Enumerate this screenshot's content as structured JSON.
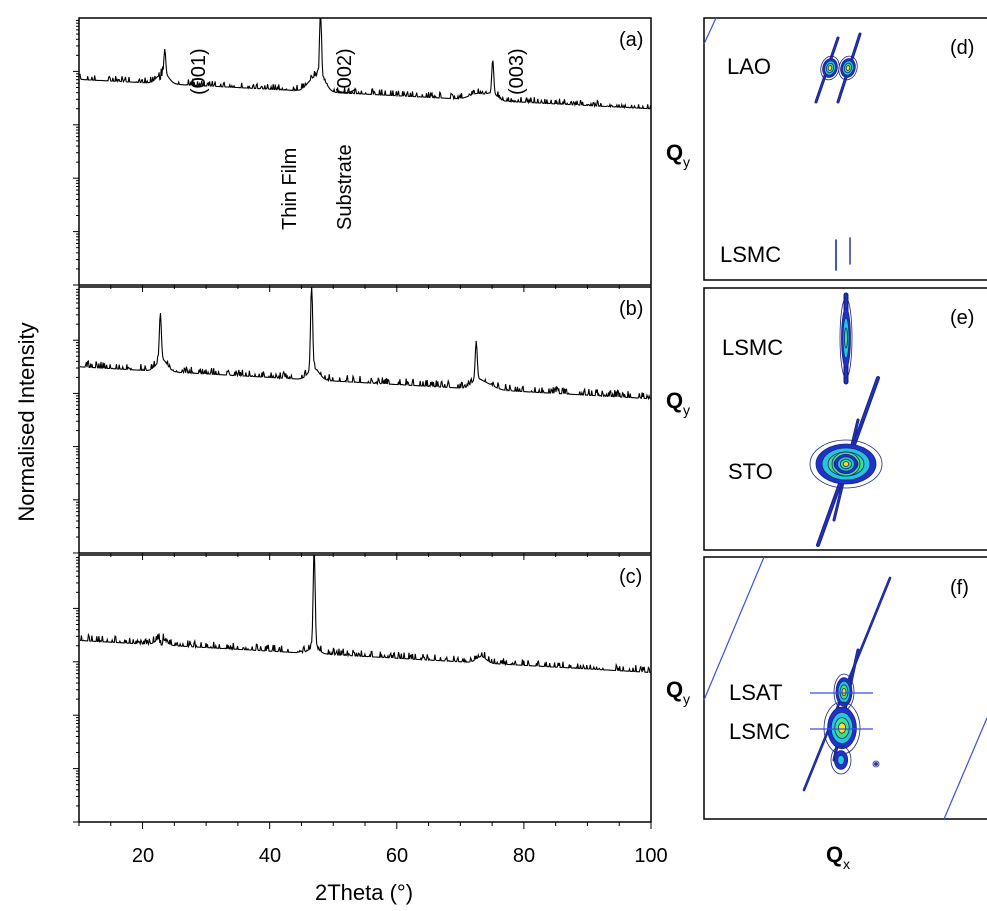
{
  "figure": {
    "xlabel": "2Theta (°)",
    "ylabel": "Normalised Intensity",
    "qy_label": "Q",
    "qy_sub": "y",
    "qx_label": "Q",
    "qx_sub": "x"
  },
  "chart_data": [
    {
      "type": "line",
      "panel": "(a)",
      "x_range": [
        10,
        100
      ],
      "y_scale": "log",
      "grid": false,
      "peaks": [
        {
          "x": 22.9,
          "height": 0.3
        },
        {
          "x": 23.5,
          "height": 0.86
        },
        {
          "x": 46.3,
          "height": 0.6
        },
        {
          "x": 47.2,
          "height": 0.45
        },
        {
          "x": 48.0,
          "height": 1.0
        },
        {
          "x": 48.35,
          "height": 0.6
        },
        {
          "x": 72.8,
          "height": 0.08
        },
        {
          "x": 75.1,
          "height": 0.82
        }
      ],
      "annotations": [
        "(001)",
        "Thin Film",
        "(002)",
        "Substrate",
        "(003)"
      ]
    },
    {
      "type": "line",
      "panel": "(b)",
      "x_range": [
        10,
        100
      ],
      "y_scale": "log",
      "grid": false,
      "peaks": [
        {
          "x": 22.8,
          "height": 0.86
        },
        {
          "x": 23.3,
          "height": 0.2
        },
        {
          "x": 46.6,
          "height": 0.98
        },
        {
          "x": 47.3,
          "height": 0.58
        },
        {
          "x": 72.5,
          "height": 0.76
        },
        {
          "x": 73.9,
          "height": 0.08
        }
      ],
      "annotations": []
    },
    {
      "type": "line",
      "panel": "(c)",
      "x_range": [
        10,
        100
      ],
      "y_scale": "log",
      "grid": false,
      "peaks": [
        {
          "x": 22.9,
          "height": 0.55
        },
        {
          "x": 47.0,
          "height": 1.0
        },
        {
          "x": 73.3,
          "height": 0.45
        }
      ],
      "annotations": []
    }
  ],
  "x_ticks": [
    "20",
    "40",
    "60",
    "80",
    "100"
  ],
  "maps": [
    {
      "panel": "(d)",
      "labels": [
        "LAO",
        "LSMC"
      ]
    },
    {
      "panel": "(e)",
      "labels": [
        "LSMC",
        "STO"
      ]
    },
    {
      "panel": "(f)",
      "labels": [
        "LSAT",
        "LSMC"
      ]
    }
  ],
  "colors": {
    "trace": "#000000",
    "contour_line": "#1a237e",
    "contour_low": "#1f33cc",
    "contour_mid": "#24c6d8",
    "contour_high": "#ffe21a",
    "contour_peak": "#e52b1a",
    "reference_line": "#3a4fe0"
  }
}
